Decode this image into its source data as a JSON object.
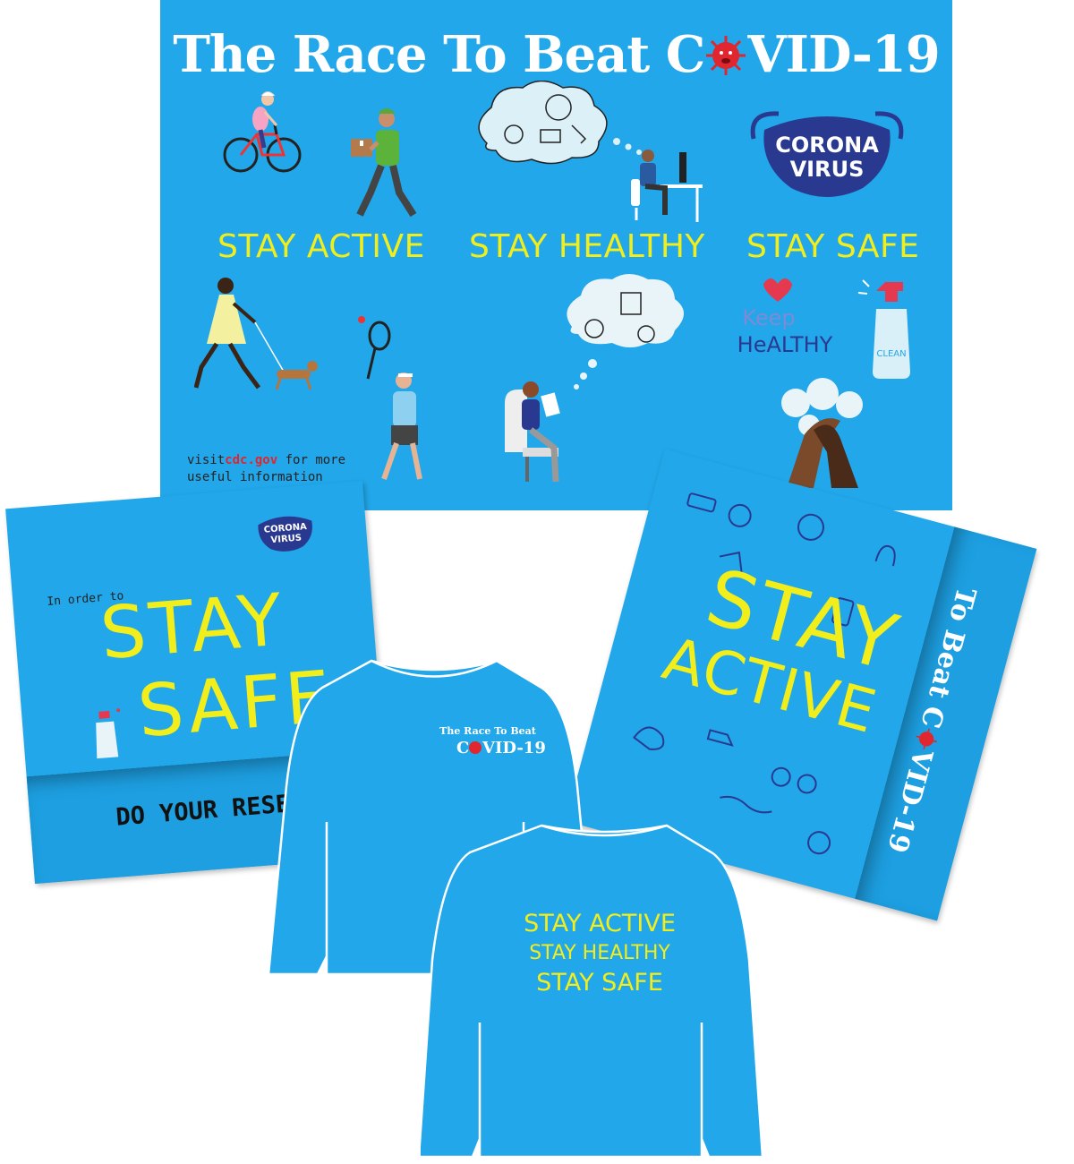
{
  "poster": {
    "title_part1": "The Race To Beat C",
    "title_part2": "VID-19",
    "sections": [
      "STAY ACTIVE",
      "STAY HEALTHY",
      "STAY SAFE"
    ],
    "mask_line1": "CORONA",
    "mask_line2": "VIRUS",
    "keep": "Keep",
    "healthy": "HeALTHY",
    "clean": "CLEAN",
    "visit_prefix": "visit",
    "visit_link": "cdc.gov",
    "visit_suffix": " for more",
    "visit_line2": "useful information"
  },
  "card_safe": {
    "intro": "In order to",
    "line1": "STAY",
    "line2": "SAFE",
    "footer": "DO YOUR RESEARCH",
    "mask_line1": "CORONA",
    "mask_line2": "VIRUS"
  },
  "card_active": {
    "line1": "STAY",
    "line2": "ACTIVE",
    "side_part1": "To Beat C",
    "side_part2": "VID-19"
  },
  "shirt_front": {
    "line1": "The Race To Beat",
    "line2_part1": "C",
    "line2_part2": "VID-19"
  },
  "shirt_back": {
    "lines": [
      "STAY ACTIVE",
      "STAY HEALTHY",
      "STAY SAFE"
    ]
  },
  "colors": {
    "background": "#22a7ea",
    "accent_yellow": "#f2ee1c",
    "mask_navy": "#2a3990",
    "virus_red": "#e0262e"
  }
}
